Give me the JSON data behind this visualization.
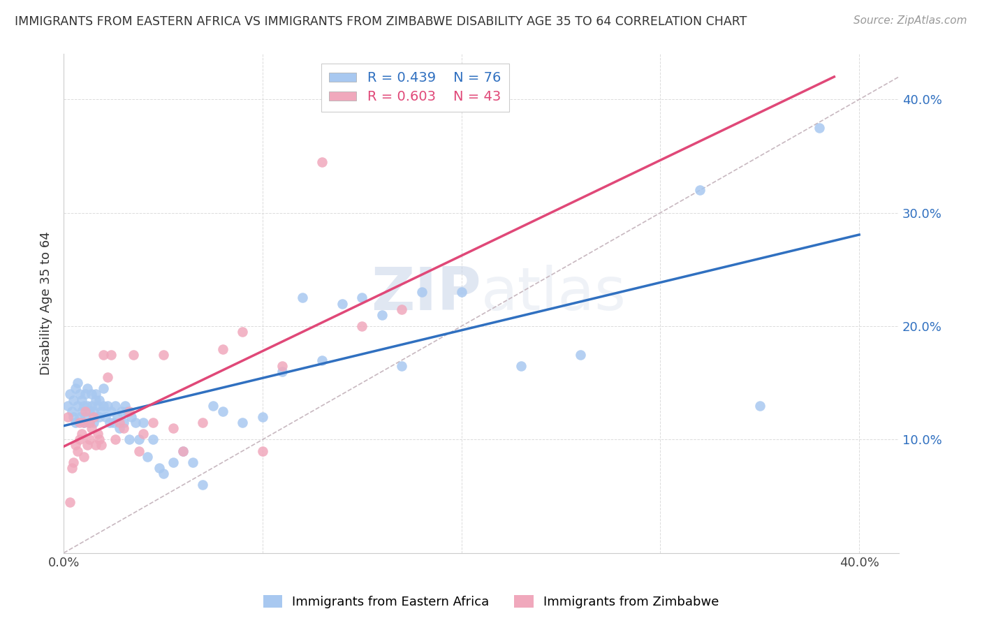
{
  "title": "IMMIGRANTS FROM EASTERN AFRICA VS IMMIGRANTS FROM ZIMBABWE DISABILITY AGE 35 TO 64 CORRELATION CHART",
  "source": "Source: ZipAtlas.com",
  "ylabel": "Disability Age 35 to 64",
  "xlim": [
    0.0,
    0.42
  ],
  "ylim": [
    0.0,
    0.44
  ],
  "x_ticks": [
    0.0,
    0.1,
    0.2,
    0.3,
    0.4
  ],
  "x_tick_labels": [
    "0.0%",
    "",
    "",
    "",
    "40.0%"
  ],
  "y_ticks": [
    0.1,
    0.2,
    0.3,
    0.4
  ],
  "y_tick_labels": [
    "10.0%",
    "20.0%",
    "30.0%",
    "40.0%"
  ],
  "blue_color": "#A8C8F0",
  "pink_color": "#F0A8BC",
  "blue_line_color": "#3070C0",
  "pink_line_color": "#E04878",
  "diagonal_color": "#C8B8C0",
  "R_blue": 0.439,
  "N_blue": 76,
  "R_pink": 0.603,
  "N_pink": 43,
  "legend_label_blue": "Immigrants from Eastern Africa",
  "legend_label_pink": "Immigrants from Zimbabwe",
  "watermark_zip": "ZIP",
  "watermark_atlas": "atlas",
  "blue_x": [
    0.002,
    0.003,
    0.004,
    0.005,
    0.005,
    0.006,
    0.006,
    0.007,
    0.007,
    0.008,
    0.008,
    0.009,
    0.009,
    0.01,
    0.01,
    0.011,
    0.011,
    0.012,
    0.012,
    0.013,
    0.013,
    0.014,
    0.014,
    0.015,
    0.015,
    0.016,
    0.016,
    0.017,
    0.018,
    0.018,
    0.019,
    0.02,
    0.02,
    0.021,
    0.022,
    0.023,
    0.024,
    0.025,
    0.026,
    0.027,
    0.028,
    0.029,
    0.03,
    0.031,
    0.032,
    0.033,
    0.034,
    0.036,
    0.038,
    0.04,
    0.042,
    0.045,
    0.048,
    0.05,
    0.055,
    0.06,
    0.065,
    0.07,
    0.075,
    0.08,
    0.09,
    0.1,
    0.11,
    0.12,
    0.13,
    0.14,
    0.15,
    0.16,
    0.17,
    0.18,
    0.2,
    0.23,
    0.26,
    0.32,
    0.35,
    0.38
  ],
  "blue_y": [
    0.13,
    0.14,
    0.125,
    0.12,
    0.135,
    0.115,
    0.145,
    0.13,
    0.15,
    0.12,
    0.14,
    0.125,
    0.135,
    0.13,
    0.115,
    0.14,
    0.12,
    0.13,
    0.145,
    0.115,
    0.125,
    0.14,
    0.13,
    0.125,
    0.115,
    0.135,
    0.14,
    0.13,
    0.12,
    0.135,
    0.125,
    0.13,
    0.145,
    0.12,
    0.13,
    0.115,
    0.125,
    0.115,
    0.13,
    0.12,
    0.11,
    0.125,
    0.115,
    0.13,
    0.125,
    0.1,
    0.12,
    0.115,
    0.1,
    0.115,
    0.085,
    0.1,
    0.075,
    0.07,
    0.08,
    0.09,
    0.08,
    0.06,
    0.13,
    0.125,
    0.115,
    0.12,
    0.16,
    0.225,
    0.17,
    0.22,
    0.225,
    0.21,
    0.165,
    0.23,
    0.23,
    0.165,
    0.175,
    0.32,
    0.13,
    0.375
  ],
  "pink_x": [
    0.002,
    0.003,
    0.004,
    0.005,
    0.006,
    0.007,
    0.008,
    0.008,
    0.009,
    0.01,
    0.01,
    0.011,
    0.012,
    0.013,
    0.013,
    0.014,
    0.015,
    0.016,
    0.017,
    0.018,
    0.019,
    0.02,
    0.022,
    0.024,
    0.026,
    0.028,
    0.03,
    0.033,
    0.035,
    0.038,
    0.04,
    0.045,
    0.05,
    0.055,
    0.06,
    0.07,
    0.08,
    0.09,
    0.1,
    0.11,
    0.13,
    0.15,
    0.17
  ],
  "pink_y": [
    0.12,
    0.045,
    0.075,
    0.08,
    0.095,
    0.09,
    0.1,
    0.115,
    0.105,
    0.085,
    0.115,
    0.125,
    0.095,
    0.1,
    0.115,
    0.11,
    0.12,
    0.095,
    0.105,
    0.1,
    0.095,
    0.175,
    0.155,
    0.175,
    0.1,
    0.115,
    0.11,
    0.125,
    0.175,
    0.09,
    0.105,
    0.115,
    0.175,
    0.11,
    0.09,
    0.115,
    0.18,
    0.195,
    0.09,
    0.165,
    0.345,
    0.2,
    0.215
  ]
}
